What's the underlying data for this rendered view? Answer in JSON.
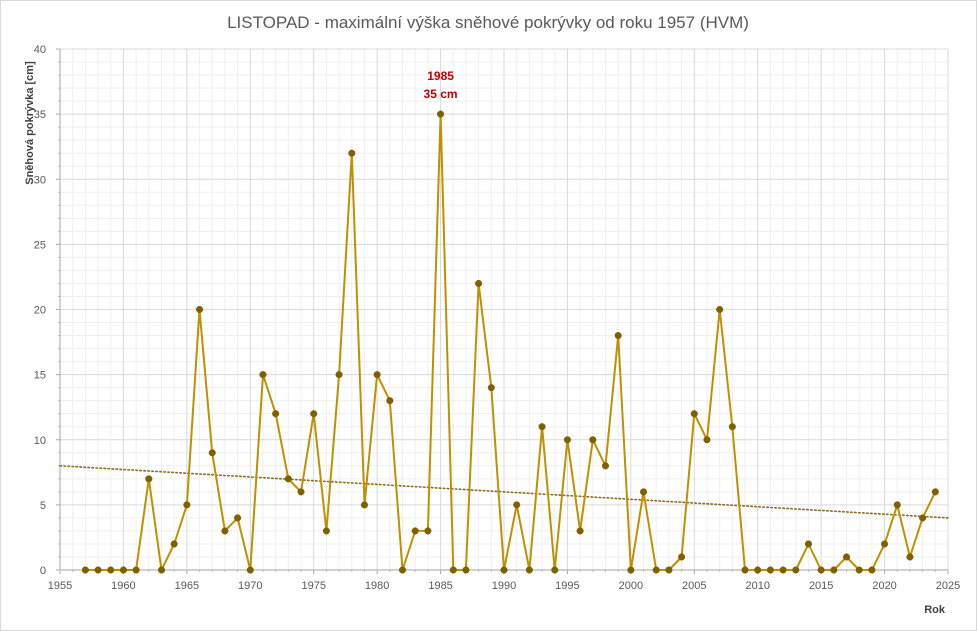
{
  "chart_data": {
    "type": "line",
    "title": "LISTOPAD - maximální výška sněhové pokrývky od roku 1957 (HVM)",
    "xlabel": "Rok",
    "ylabel": "Sněhová pokrývka [cm]",
    "xlim": [
      1955,
      2025
    ],
    "ylim": [
      0,
      40
    ],
    "x_ticks": [
      "1955",
      "1960",
      "1965",
      "1970",
      "1975",
      "1980",
      "1985",
      "1990",
      "1995",
      "2000",
      "2005",
      "2010",
      "2015",
      "2020",
      "2025"
    ],
    "y_ticks": [
      "0",
      "5",
      "10",
      "15",
      "20",
      "25",
      "30",
      "35",
      "40"
    ],
    "grid": true,
    "series": [
      {
        "x": [
          1957,
          1958,
          1959,
          1960,
          1961,
          1962,
          1963,
          1964,
          1965,
          1966,
          1967,
          1968,
          1969,
          1970,
          1971,
          1972,
          1973,
          1974,
          1975,
          1976,
          1977,
          1978,
          1979,
          1980,
          1981,
          1982,
          1983,
          1984,
          1985,
          1986,
          1987,
          1988,
          1989,
          1990,
          1991,
          1992,
          1993,
          1994,
          1995,
          1996,
          1997,
          1998,
          1999,
          2000,
          2001,
          2002,
          2003,
          2004,
          2005,
          2006,
          2007,
          2008,
          2009,
          2010,
          2011,
          2012,
          2013,
          2014,
          2015,
          2016,
          2017,
          2018,
          2019,
          2020,
          2021,
          2022,
          2023,
          2024
        ],
        "y": [
          0,
          0,
          0,
          0,
          0,
          7,
          0,
          2,
          5,
          20,
          9,
          3,
          4,
          0,
          15,
          12,
          7,
          6,
          12,
          3,
          15,
          32,
          5,
          15,
          13,
          0,
          3,
          3,
          35,
          0,
          0,
          22,
          14,
          0,
          5,
          0,
          11,
          0,
          10,
          3,
          10,
          8,
          18,
          0,
          6,
          0,
          0,
          1,
          12,
          10,
          20,
          11,
          0,
          0,
          0,
          0,
          0,
          2,
          0,
          0,
          1,
          0,
          0,
          2,
          5,
          1,
          4,
          6
        ]
      }
    ],
    "trendline": {
      "style": "dotted",
      "start": [
        1955,
        8.0
      ],
      "end": [
        2025,
        4.0
      ]
    },
    "annotations": [
      {
        "x": 1985,
        "y": 35,
        "line1": "1985",
        "line2": "35 cm"
      }
    ],
    "colors": {
      "line": "#bf9000",
      "marker": "#7f6000",
      "trendline": "#8c6a1c",
      "grid_major": "#d9d9d9",
      "grid_minor": "#efefef",
      "annotation": "#c00000"
    }
  }
}
